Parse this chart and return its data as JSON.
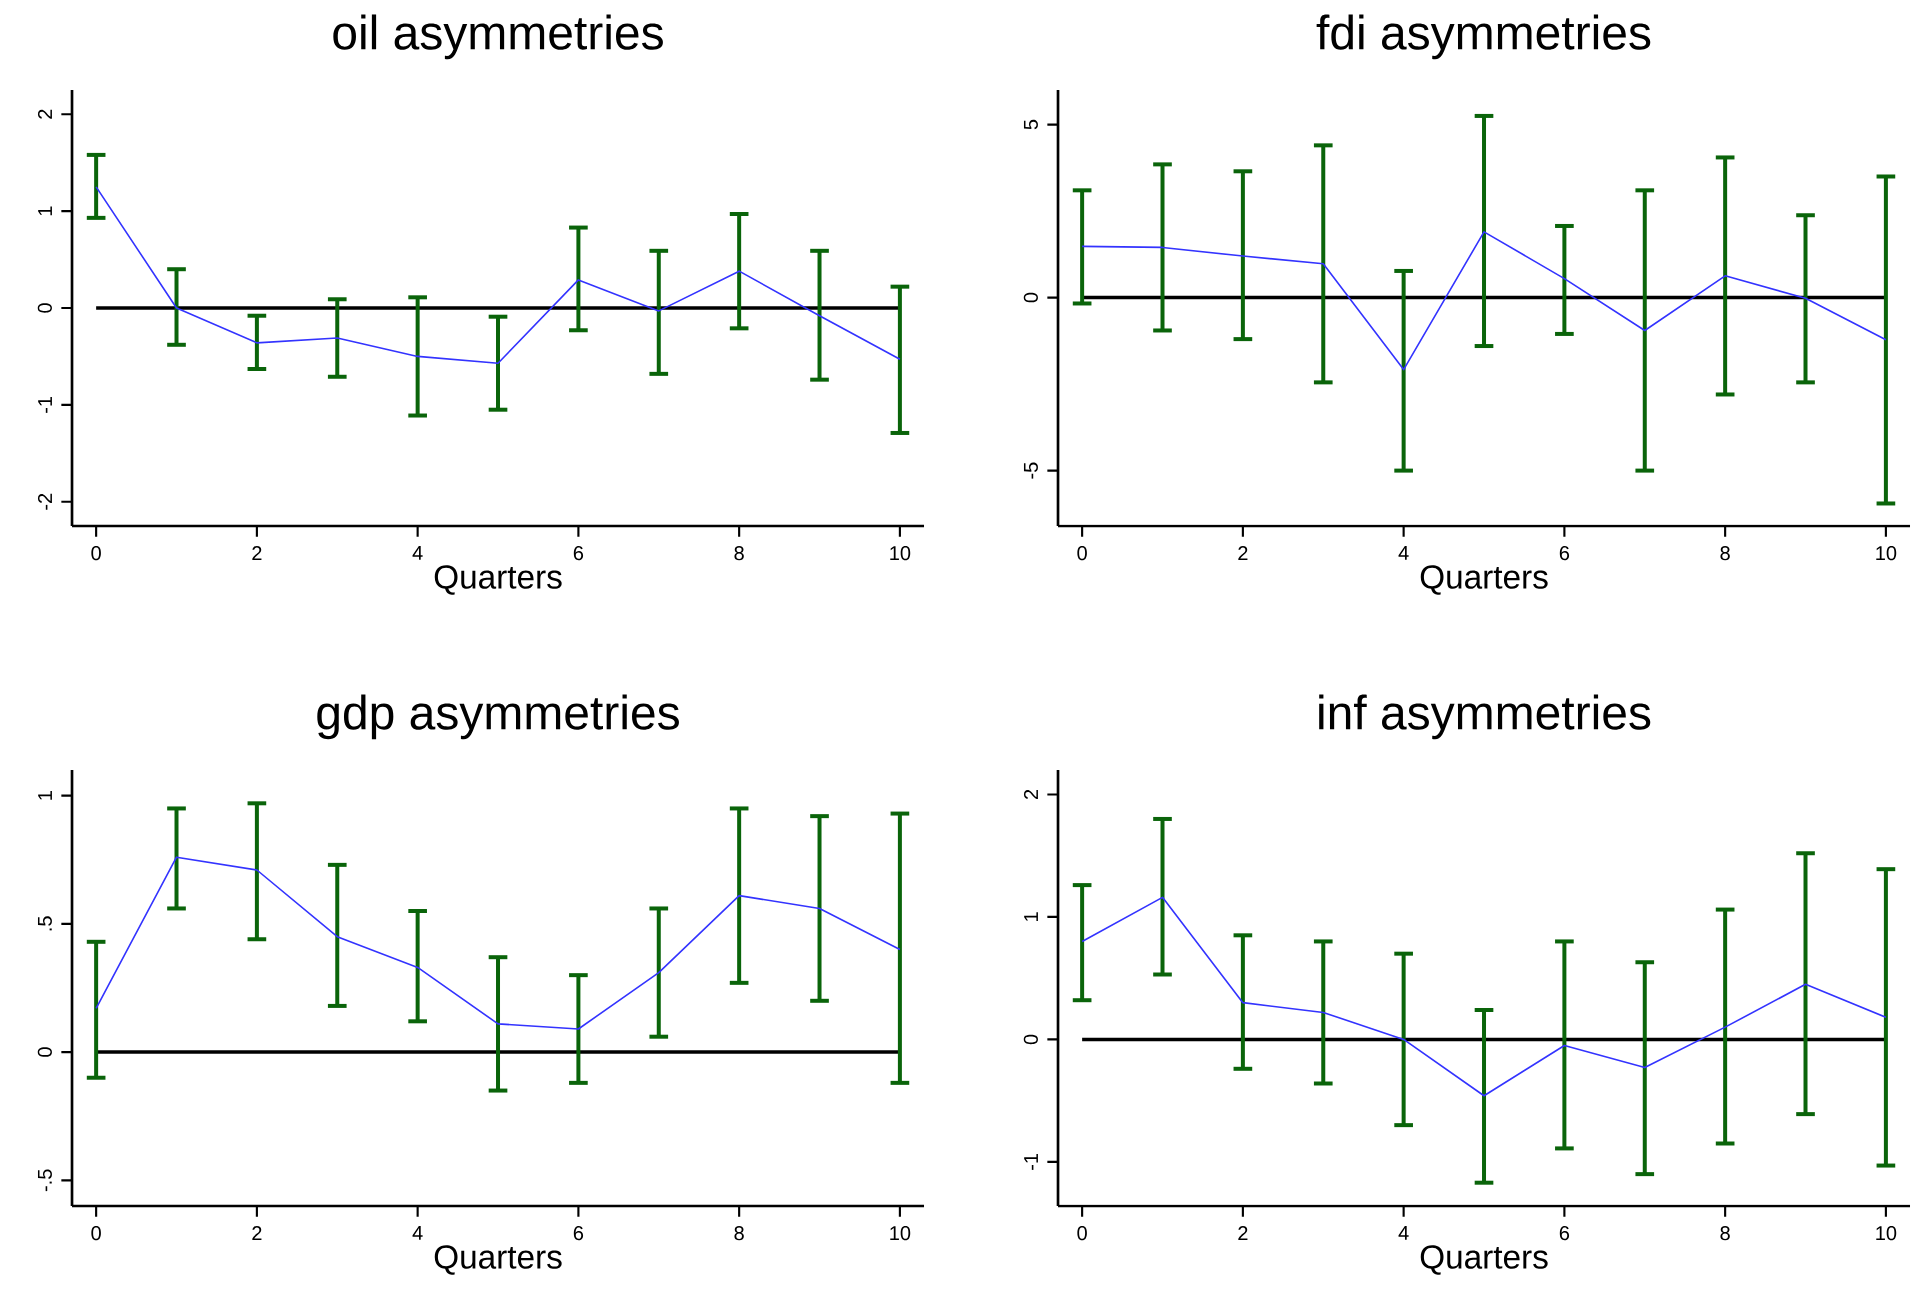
{
  "chart_data": [
    {
      "type": "line",
      "title": "oil asymmetries",
      "xlabel": "Quarters",
      "x": [
        0,
        1,
        2,
        3,
        4,
        5,
        6,
        7,
        8,
        9,
        10
      ],
      "xlim": [
        -0.3,
        10.3
      ],
      "xticks": [
        0,
        2,
        4,
        6,
        8,
        10
      ],
      "ylim": [
        -2.25,
        2.25
      ],
      "yticks": [
        -2,
        -1,
        0,
        1,
        2
      ],
      "series": [
        {
          "color": "#3333ff",
          "values": [
            1.25,
            0.0,
            -0.36,
            -0.31,
            -0.5,
            -0.57,
            0.29,
            -0.03,
            0.38,
            -0.08,
            -0.53
          ],
          "errors": [
            [
              0.93,
              1.58
            ],
            [
              -0.38,
              0.4
            ],
            [
              -0.63,
              -0.08
            ],
            [
              -0.71,
              0.09
            ],
            [
              -1.11,
              0.11
            ],
            [
              -1.05,
              -0.09
            ],
            [
              -0.23,
              0.83
            ],
            [
              -0.68,
              0.59
            ],
            [
              -0.21,
              0.97
            ],
            [
              -0.74,
              0.59
            ],
            [
              -1.29,
              0.22
            ]
          ]
        }
      ],
      "ref_lines": [
        {
          "axis": "y",
          "value": 0,
          "color": "#000000"
        }
      ]
    },
    {
      "type": "line",
      "title": "fdi asymmetries",
      "xlabel": "Quarters",
      "x": [
        0,
        1,
        2,
        3,
        4,
        5,
        6,
        7,
        8,
        9,
        10
      ],
      "xlim": [
        -0.3,
        10.3
      ],
      "xticks": [
        0,
        2,
        4,
        6,
        8,
        10
      ],
      "ylim": [
        -6.6,
        6
      ],
      "yticks": [
        -5,
        0,
        5
      ],
      "series": [
        {
          "color": "#3333ff",
          "values": [
            1.48,
            1.45,
            1.2,
            0.98,
            -2.08,
            1.9,
            0.55,
            -0.95,
            0.63,
            -0.02,
            -1.22
          ],
          "errors": [
            [
              -0.17,
              3.1
            ],
            [
              -0.95,
              3.85
            ],
            [
              -1.2,
              3.65
            ],
            [
              -2.45,
              4.4
            ],
            [
              -5.0,
              0.77
            ],
            [
              -1.4,
              5.25
            ],
            [
              -1.05,
              2.07
            ],
            [
              -5.0,
              3.1
            ],
            [
              -2.8,
              4.05
            ],
            [
              -2.45,
              2.38
            ],
            [
              -5.95,
              3.5
            ]
          ]
        }
      ],
      "ref_lines": [
        {
          "axis": "y",
          "value": 0,
          "color": "#000000"
        }
      ]
    },
    {
      "type": "line",
      "title": "gdp asymmetries",
      "xlabel": "Quarters",
      "x": [
        0,
        1,
        2,
        3,
        4,
        5,
        6,
        7,
        8,
        9,
        10
      ],
      "xlim": [
        -0.3,
        10.3
      ],
      "xticks": [
        0,
        2,
        4,
        6,
        8,
        10
      ],
      "ylim": [
        -0.6,
        1.1
      ],
      "yticks": [
        {
          "value": -0.5,
          "label": "-.5"
        },
        0,
        {
          "value": 0.5,
          "label": ".5"
        },
        1
      ],
      "series": [
        {
          "color": "#3333ff",
          "values": [
            0.17,
            0.76,
            0.71,
            0.45,
            0.33,
            0.11,
            0.09,
            0.31,
            0.61,
            0.56,
            0.4
          ],
          "errors": [
            [
              -0.1,
              0.43
            ],
            [
              0.56,
              0.95
            ],
            [
              0.44,
              0.97
            ],
            [
              0.18,
              0.73
            ],
            [
              0.12,
              0.55
            ],
            [
              -0.15,
              0.37
            ],
            [
              -0.12,
              0.3
            ],
            [
              0.06,
              0.56
            ],
            [
              0.27,
              0.95
            ],
            [
              0.2,
              0.92
            ],
            [
              -0.12,
              0.93
            ]
          ]
        }
      ],
      "ref_lines": [
        {
          "axis": "y",
          "value": 0,
          "color": "#000000"
        }
      ]
    },
    {
      "type": "line",
      "title": "inf asymmetries",
      "xlabel": "Quarters",
      "x": [
        0,
        1,
        2,
        3,
        4,
        5,
        6,
        7,
        8,
        9,
        10
      ],
      "xlim": [
        -0.3,
        10.3
      ],
      "xticks": [
        0,
        2,
        4,
        6,
        8,
        10
      ],
      "ylim": [
        -1.36,
        2.2
      ],
      "yticks": [
        -1,
        0,
        1,
        2
      ],
      "series": [
        {
          "color": "#3333ff",
          "values": [
            0.8,
            1.16,
            0.3,
            0.22,
            0.0,
            -0.46,
            -0.05,
            -0.23,
            0.1,
            0.45,
            0.18
          ],
          "errors": [
            [
              0.32,
              1.26
            ],
            [
              0.53,
              1.8
            ],
            [
              -0.24,
              0.85
            ],
            [
              -0.36,
              0.8
            ],
            [
              -0.7,
              0.7
            ],
            [
              -1.17,
              0.24
            ],
            [
              -0.89,
              0.8
            ],
            [
              -1.1,
              0.63
            ],
            [
              -0.85,
              1.06
            ],
            [
              -0.61,
              1.52
            ],
            [
              -1.03,
              1.39
            ]
          ]
        }
      ],
      "ref_lines": [
        {
          "axis": "y",
          "value": 0,
          "color": "#000000"
        }
      ]
    }
  ]
}
